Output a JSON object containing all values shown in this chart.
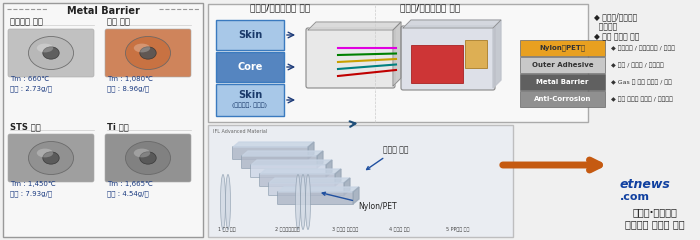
{
  "bg_color": "#f0f0f0",
  "left_box_bg": "#f7f7f7",
  "left_box_border": "#999999",
  "left_title": "Metal Barrier",
  "items": [
    {
      "name": "알루미늄 소재",
      "tm": "Tm : 660℃",
      "density": "밀도 : 2.73g/㎤",
      "col": "#b8b8b8",
      "row": 0,
      "side": 0
    },
    {
      "name": "구리 소재",
      "tm": "Tm : 1,080℃",
      "density": "밀도 : 8.96g/㎤",
      "col": "#c87040",
      "row": 0,
      "side": 1
    },
    {
      "name": "STS 소재",
      "tm": "Tm : 1,450℃",
      "density": "밀도 : 7.93g/㎤",
      "col": "#909090",
      "row": 1,
      "side": 0
    },
    {
      "name": "Ti 소재",
      "tm": "Tm : 1,665℃",
      "density": "밀도 : 4.54g/㎤",
      "col": "#808080",
      "row": 1,
      "side": 1
    }
  ],
  "top_box_bg": "#f8f8f8",
  "top_box_border": "#aaaaaa",
  "title1": "내화학/기능성소재 구조",
  "title2": "내화학/기능성소재 공정",
  "skin_color": "#5b9bd5",
  "core_color": "#4472c4",
  "skin_label": "Skin",
  "core_label": "Core",
  "skin2_label": "Skin",
  "skin2_sub": "(내화학성, 기능성)",
  "bullets": [
    "◆ 내화학/기능소재",
    "  구조설계",
    "◆ 신규 접착제 개발"
  ],
  "arrow_blue": "#1f4e79",
  "arrow_orange": "#c55a11",
  "bottom_box_bg": "#e8edf4",
  "bottom_box_border": "#aaaaaa",
  "pouch_label": "파우치 필름",
  "nylon_label": "Nylon/PET",
  "steps": [
    "1 포인 미디",
    "2 접착제를붙이기",
    "3 나일론 접착부위",
    "4 하락재 오르",
    "5 PP접착 부위"
  ],
  "stack_layers": [
    {
      "label": "Nylon（PET）",
      "color": "#e8a020",
      "text_color": "#333333"
    },
    {
      "label": "Outer Adhesive",
      "color": "#c8c8c8",
      "text_color": "#333333"
    },
    {
      "label": "Metal Barrier",
      "color": "#606060",
      "text_color": "#ffffff"
    },
    {
      "label": "Anti-Corrosion",
      "color": "#909090",
      "text_color": "#ffffff"
    }
  ],
  "right_descs": [
    "◆ 열성피성 / 내전류성상 / 강성강",
    "◆ 강도 / 신임성 / 내화학성",
    "◆ Gas 차 내부 엔진성 / 검널",
    "◆ 내음 화학재 고강성 / 내화학성"
  ],
  "etnews_text": "etnews",
  "etnews_com": ".com",
  "etnews_color": "#1040a0",
  "final1": "고안전·고신회성",
  "final2": "이차전지 외장재 개발"
}
